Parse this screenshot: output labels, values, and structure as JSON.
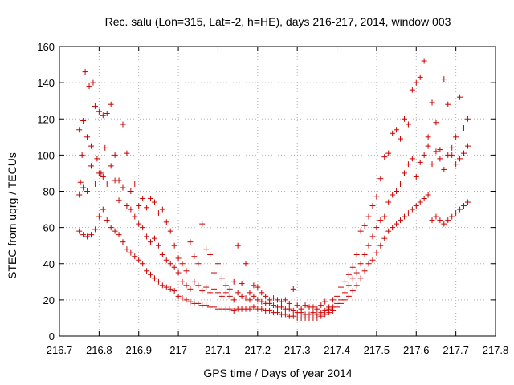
{
  "chart_data": {
    "type": "scatter",
    "title": "Rec. salu (Lon=315, Lat=-2, h=HE), days 216-217, 2014, window 003",
    "xlabel": "GPS time / Days of year 2014",
    "ylabel": "STEC from uqrg / TECUs",
    "xlim": [
      216.7,
      217.8
    ],
    "ylim": [
      0,
      160
    ],
    "xticks": [
      "216.7",
      "216.8",
      "216.9",
      "217",
      "217.1",
      "217.2",
      "217.3",
      "217.4",
      "217.5",
      "217.6",
      "217.7",
      "217.8"
    ],
    "yticks": [
      "0",
      "20",
      "40",
      "60",
      "80",
      "100",
      "120",
      "140",
      "160"
    ],
    "grid": true,
    "marker": "+",
    "color": "#cc0000",
    "series": [
      {
        "x": [
          216.75,
          216.753,
          216.757,
          216.76,
          216.765,
          216.77,
          216.775,
          216.78,
          216.785,
          216.79,
          216.795,
          216.8,
          216.805,
          216.81,
          216.815,
          216.82,
          216.83,
          216.84,
          216.85,
          216.86,
          216.87,
          216.88,
          216.89,
          216.9,
          216.91,
          216.92,
          216.93,
          216.94,
          216.95,
          216.96,
          216.97,
          216.98,
          216.99,
          217.0,
          217.01,
          217.02,
          217.03,
          217.04,
          217.05,
          217.06,
          217.07,
          217.08,
          217.09,
          217.1,
          217.11,
          217.12,
          217.13,
          217.14,
          217.15,
          217.16,
          217.17,
          217.18,
          217.19,
          217.2,
          217.21,
          217.22,
          217.23,
          217.24,
          217.25,
          217.26,
          217.27,
          217.28,
          217.29,
          217.3,
          217.31,
          217.32,
          217.33,
          217.34,
          217.35,
          217.36,
          217.37,
          217.38,
          217.39,
          217.4,
          217.41,
          217.42,
          217.43,
          217.44,
          217.45,
          217.46,
          217.47,
          217.48,
          217.49,
          217.5,
          217.51,
          217.52,
          217.53,
          217.54,
          217.55,
          217.56,
          217.57,
          217.58,
          217.59,
          217.6,
          217.61,
          217.62,
          217.63,
          217.64,
          217.65,
          217.66,
          217.67,
          217.68,
          217.69,
          217.7,
          217.71,
          217.72,
          217.73
        ],
        "y": [
          114,
          85,
          100,
          119,
          146,
          110,
          138,
          105,
          140,
          127,
          98,
          124,
          90,
          122,
          104,
          123,
          128,
          100,
          86,
          117,
          101,
          80,
          84,
          72,
          76,
          71,
          76,
          74,
          68,
          70,
          63,
          58,
          50,
          43,
          40,
          36,
          52,
          44,
          40,
          62,
          48,
          45,
          35,
          40,
          32,
          28,
          26,
          30,
          50,
          29,
          40,
          24,
          28,
          27,
          24,
          22,
          20,
          21,
          20,
          19,
          20,
          18,
          26,
          17,
          15,
          17,
          16,
          16,
          15,
          17,
          19,
          16,
          20,
          22,
          27,
          30,
          34,
          38,
          45,
          58,
          61,
          66,
          72,
          77,
          87,
          99,
          101,
          112,
          114,
          109,
          120,
          117,
          136,
          140,
          143,
          152,
          110,
          129,
          118,
          103,
          142,
          128,
          100,
          110,
          132,
          115,
          120
        ]
      },
      {
        "x": [
          216.75,
          216.76,
          216.77,
          216.78,
          216.79,
          216.8,
          216.81,
          216.82,
          216.83,
          216.84,
          216.85,
          216.86,
          216.87,
          216.88,
          216.89,
          216.9,
          216.91,
          216.92,
          216.93,
          216.94,
          216.95,
          216.96,
          216.97,
          216.98,
          216.99,
          217.0,
          217.01,
          217.02,
          217.03,
          217.04,
          217.05,
          217.06,
          217.07,
          217.08,
          217.09,
          217.1,
          217.11,
          217.12,
          217.13,
          217.14,
          217.15,
          217.16,
          217.17,
          217.18,
          217.19,
          217.2,
          217.21,
          217.22,
          217.23,
          217.24,
          217.25,
          217.26,
          217.27,
          217.28,
          217.29,
          217.3,
          217.31,
          217.32,
          217.33,
          217.34,
          217.35,
          217.36,
          217.37,
          217.38,
          217.39,
          217.4,
          217.41,
          217.42,
          217.43,
          217.44,
          217.45,
          217.46,
          217.47,
          217.48,
          217.49,
          217.5,
          217.51,
          217.52,
          217.53,
          217.54,
          217.55,
          217.56,
          217.57,
          217.58,
          217.59,
          217.6,
          217.61,
          217.62,
          217.63,
          217.64,
          217.65,
          217.66,
          217.67,
          217.68,
          217.69,
          217.7,
          217.71,
          217.72,
          217.73
        ],
        "y": [
          78,
          82,
          80,
          94,
          84,
          90,
          88,
          84,
          94,
          86,
          75,
          82,
          72,
          70,
          66,
          62,
          60,
          55,
          52,
          54,
          50,
          45,
          42,
          40,
          38,
          35,
          30,
          28,
          26,
          30,
          28,
          25,
          27,
          24,
          26,
          24,
          22,
          24,
          22,
          20,
          24,
          22,
          21,
          20,
          22,
          20,
          19,
          18,
          18,
          17,
          16,
          16,
          15,
          15,
          14,
          13,
          13,
          12,
          12,
          13,
          12,
          13,
          14,
          15,
          16,
          18,
          20,
          24,
          28,
          32,
          35,
          40,
          45,
          50,
          55,
          60,
          64,
          66,
          74,
          78,
          80,
          84,
          90,
          95,
          98,
          88,
          96,
          100,
          105,
          95,
          102,
          98,
          92,
          100,
          104,
          95,
          98,
          101,
          105
        ]
      },
      {
        "x": [
          216.75,
          216.76,
          216.77,
          216.78,
          216.79,
          216.8,
          216.81,
          216.82,
          216.83,
          216.84,
          216.85,
          216.86,
          216.87,
          216.88,
          216.89,
          216.9,
          216.91,
          216.92,
          216.93,
          216.94,
          216.95,
          216.96,
          216.97,
          216.98,
          216.99,
          217.0,
          217.01,
          217.02,
          217.03,
          217.04,
          217.05,
          217.06,
          217.07,
          217.08,
          217.09,
          217.1,
          217.11,
          217.12,
          217.13,
          217.14,
          217.15,
          217.16,
          217.17,
          217.18,
          217.19,
          217.2,
          217.21,
          217.22,
          217.23,
          217.24,
          217.25,
          217.26,
          217.27,
          217.28,
          217.29,
          217.3,
          217.31,
          217.32,
          217.33,
          217.34,
          217.35,
          217.36,
          217.37,
          217.38,
          217.39,
          217.4,
          217.41,
          217.42,
          217.43,
          217.44,
          217.45,
          217.46,
          217.47,
          217.48,
          217.49,
          217.5,
          217.51,
          217.52,
          217.53,
          217.54,
          217.55,
          217.56,
          217.57,
          217.58,
          217.59,
          217.6,
          217.61,
          217.62,
          217.63,
          217.64,
          217.65,
          217.66,
          217.67,
          217.68,
          217.69,
          217.7,
          217.71,
          217.72,
          217.73
        ],
        "y": [
          58,
          56,
          55,
          56,
          59,
          66,
          70,
          64,
          60,
          58,
          56,
          52,
          48,
          46,
          44,
          42,
          40,
          36,
          34,
          32,
          30,
          28,
          27,
          26,
          25,
          22,
          21,
          20,
          19,
          18,
          18,
          17,
          17,
          16,
          16,
          15,
          15,
          15,
          15,
          14,
          15,
          15,
          15,
          15,
          16,
          15,
          15,
          14,
          14,
          13,
          13,
          12,
          12,
          11,
          11,
          10,
          10,
          10,
          10,
          10,
          10,
          11,
          12,
          13,
          14,
          16,
          18,
          20,
          22,
          25,
          28,
          32,
          36,
          40,
          42,
          46,
          50,
          54,
          58,
          60,
          62,
          64,
          66,
          68,
          70,
          72,
          74,
          76,
          78,
          64,
          66,
          64,
          62,
          64,
          66,
          68,
          70,
          72,
          74
        ]
      }
    ]
  }
}
